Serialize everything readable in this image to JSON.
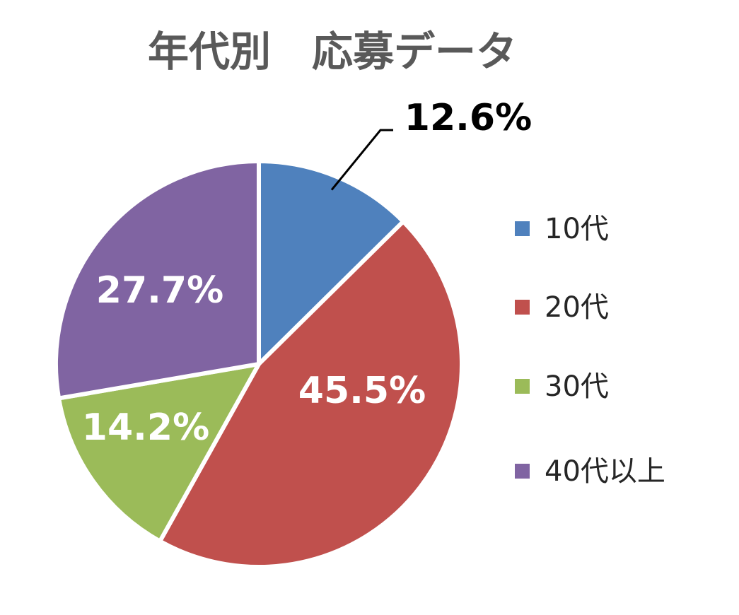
{
  "chart_data": {
    "type": "pie",
    "title": "年代別　応募データ",
    "categories": [
      "10代",
      "20代",
      "30代",
      "40代以上"
    ],
    "values": [
      12.6,
      45.5,
      14.2,
      27.7
    ],
    "data_labels": [
      "12.6%",
      "45.5%",
      "14.2%",
      "27.7%"
    ],
    "colors": [
      "#4f81bd",
      "#c0504d",
      "#9bbb59",
      "#8064a2"
    ],
    "label_colors": [
      "#000000",
      "#ffffff",
      "#ffffff",
      "#ffffff"
    ],
    "start_angle": "12 o'clock",
    "direction": "clockwise",
    "legend": "right"
  }
}
